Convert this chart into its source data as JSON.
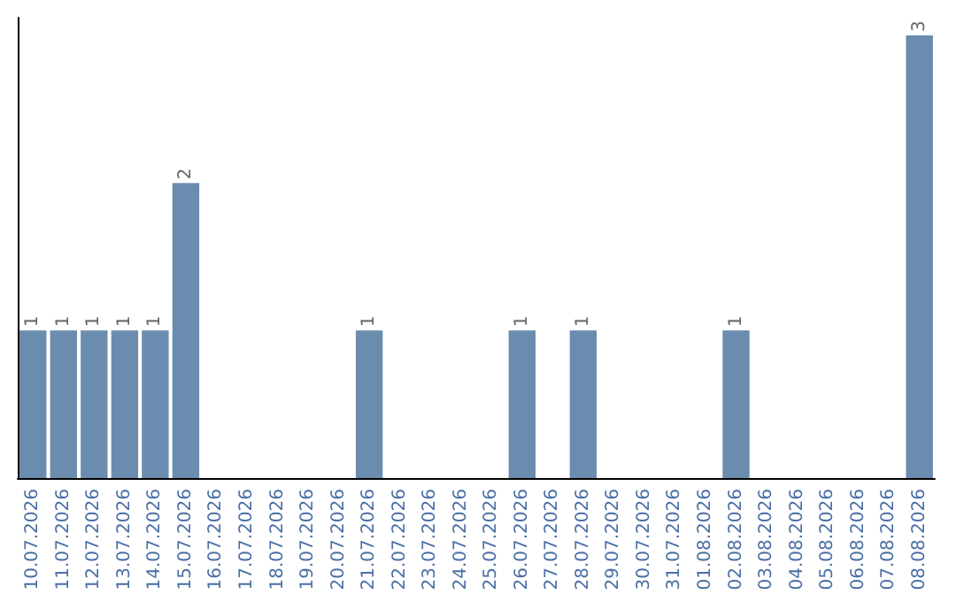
{
  "chart_data": {
    "type": "bar",
    "categories": [
      "10.07.2026",
      "11.07.2026",
      "12.07.2026",
      "13.07.2026",
      "14.07.2026",
      "15.07.2026",
      "16.07.2026",
      "17.07.2026",
      "18.07.2026",
      "19.07.2026",
      "20.07.2026",
      "21.07.2026",
      "22.07.2026",
      "23.07.2026",
      "24.07.2026",
      "25.07.2026",
      "26.07.2026",
      "27.07.2026",
      "28.07.2026",
      "29.07.2026",
      "30.07.2026",
      "31.07.2026",
      "01.08.2026",
      "02.08.2026",
      "03.08.2026",
      "04.08.2026",
      "05.08.2026",
      "06.08.2026",
      "07.08.2026",
      "08.08.2026"
    ],
    "values": [
      1,
      1,
      1,
      1,
      1,
      2,
      0,
      0,
      0,
      0,
      0,
      1,
      0,
      0,
      0,
      0,
      1,
      0,
      1,
      0,
      0,
      0,
      0,
      1,
      0,
      0,
      0,
      0,
      0,
      3
    ],
    "value_labels": [
      "1",
      "1",
      "1",
      "1",
      "1",
      "2",
      null,
      null,
      null,
      null,
      null,
      "1",
      null,
      null,
      null,
      null,
      "1",
      null,
      "1",
      null,
      null,
      null,
      null,
      "1",
      null,
      null,
      null,
      null,
      null,
      "3"
    ],
    "color": "#6a8caf",
    "tick_labels": "x"
  }
}
